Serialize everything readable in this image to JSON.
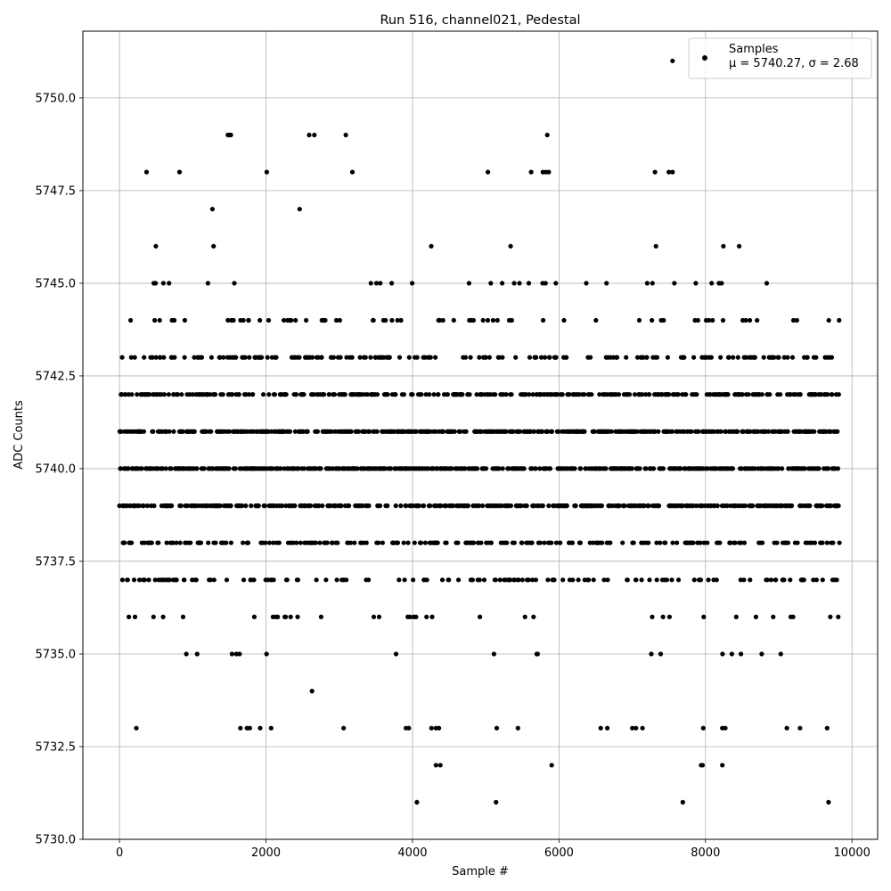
{
  "chart_data": {
    "type": "scatter",
    "title": "Run 516, channel021, Pedestal",
    "xlabel": "Sample #",
    "ylabel": "ADC Counts",
    "xlim": [
      -500,
      10350
    ],
    "ylim": [
      5730.0,
      5751.8
    ],
    "xticks": [
      0,
      2000,
      4000,
      6000,
      8000,
      10000
    ],
    "xtick_labels": [
      "0",
      "2000",
      "4000",
      "6000",
      "8000",
      "10000"
    ],
    "yticks": [
      5730.0,
      5732.5,
      5735.0,
      5737.5,
      5740.0,
      5742.5,
      5745.0,
      5747.5,
      5750.0
    ],
    "ytick_labels": [
      "5730.0",
      "5732.5",
      "5735.0",
      "5737.5",
      "5740.0",
      "5742.5",
      "5745.0",
      "5747.5",
      "5750.0"
    ],
    "grid": true,
    "legend": {
      "position": "top-right",
      "entries": [
        {
          "name": "Samples"
        }
      ],
      "stats_text": "μ = 5740.27, σ = 2.68"
    },
    "marker_color": "#000000",
    "x_range_of_samples": [
      0,
      9830
    ],
    "series": [
      {
        "name": "Samples",
        "mean": 5740.27,
        "sigma": 2.68,
        "levels": [
          5731,
          5732,
          5733,
          5734,
          5735,
          5736,
          5737,
          5738,
          5739,
          5740,
          5741,
          5742,
          5743,
          5744,
          5745,
          5746,
          5747,
          5748,
          5749,
          5751
        ],
        "points": [
          {
            "x": 7550,
            "y": 5751
          },
          {
            "x": 1480,
            "y": 5749
          },
          {
            "x": 1500,
            "y": 5749
          },
          {
            "x": 1520,
            "y": 5749
          },
          {
            "x": 2590,
            "y": 5749
          },
          {
            "x": 2660,
            "y": 5749
          },
          {
            "x": 3090,
            "y": 5749
          },
          {
            "x": 5840,
            "y": 5749
          },
          {
            "x": 370,
            "y": 5748
          },
          {
            "x": 820,
            "y": 5748
          },
          {
            "x": 2010,
            "y": 5748
          },
          {
            "x": 3180,
            "y": 5748
          },
          {
            "x": 5030,
            "y": 5748
          },
          {
            "x": 5620,
            "y": 5748
          },
          {
            "x": 5780,
            "y": 5748
          },
          {
            "x": 5820,
            "y": 5748
          },
          {
            "x": 5860,
            "y": 5748
          },
          {
            "x": 7310,
            "y": 5748
          },
          {
            "x": 7500,
            "y": 5748
          },
          {
            "x": 7550,
            "y": 5748
          },
          {
            "x": 4320,
            "y": 5732
          },
          {
            "x": 4380,
            "y": 5732
          },
          {
            "x": 5900,
            "y": 5732
          },
          {
            "x": 7940,
            "y": 5732
          },
          {
            "x": 7960,
            "y": 5732
          },
          {
            "x": 8230,
            "y": 5732
          },
          {
            "x": 4060,
            "y": 5731
          },
          {
            "x": 5140,
            "y": 5731
          },
          {
            "x": 7690,
            "y": 5731
          },
          {
            "x": 9680,
            "y": 5731
          },
          {
            "x": 230,
            "y": 5733
          },
          {
            "x": 1650,
            "y": 5733
          },
          {
            "x": 1740,
            "y": 5733
          },
          {
            "x": 1780,
            "y": 5733
          },
          {
            "x": 1920,
            "y": 5733
          },
          {
            "x": 2070,
            "y": 5733
          },
          {
            "x": 3060,
            "y": 5733
          },
          {
            "x": 3910,
            "y": 5733
          },
          {
            "x": 3950,
            "y": 5733
          },
          {
            "x": 4260,
            "y": 5733
          },
          {
            "x": 4320,
            "y": 5733
          },
          {
            "x": 4360,
            "y": 5733
          },
          {
            "x": 5150,
            "y": 5733
          },
          {
            "x": 5440,
            "y": 5733
          },
          {
            "x": 6570,
            "y": 5733
          },
          {
            "x": 6660,
            "y": 5733
          },
          {
            "x": 7000,
            "y": 5733
          },
          {
            "x": 7050,
            "y": 5733
          },
          {
            "x": 7140,
            "y": 5733
          },
          {
            "x": 7970,
            "y": 5733
          },
          {
            "x": 8230,
            "y": 5733
          },
          {
            "x": 8270,
            "y": 5733
          },
          {
            "x": 9110,
            "y": 5733
          },
          {
            "x": 9290,
            "y": 5733
          },
          {
            "x": 9660,
            "y": 5733
          }
        ]
      }
    ]
  }
}
